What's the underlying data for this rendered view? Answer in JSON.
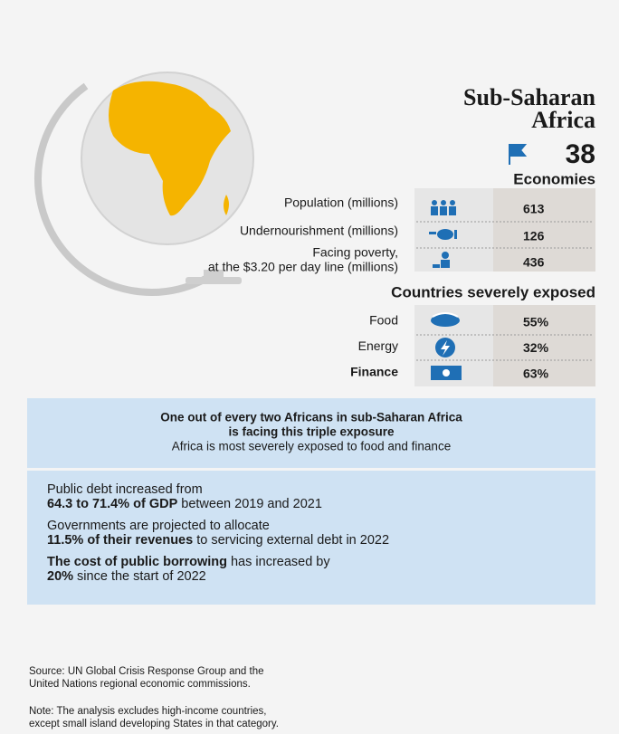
{
  "header": {
    "title_lines": [
      "Sub-Saharan",
      "Africa"
    ],
    "count": "38",
    "count_label": "Economies"
  },
  "stats": [
    {
      "label_lines": [
        "Population (millions)"
      ],
      "value": 613
    },
    {
      "label_lines": [
        "Undernourishment (millions)"
      ],
      "value": 126
    },
    {
      "label_lines": [
        "Facing poverty,",
        "at the $3.20 per day line (millions)"
      ],
      "value": 436
    }
  ],
  "exposure": {
    "heading": "Countries severely exposed",
    "rows": [
      {
        "label": "Food",
        "value": "55%"
      },
      {
        "label": "Energy",
        "value": "32%"
      },
      {
        "label": "Finance",
        "value": "63%"
      }
    ]
  },
  "highlight": {
    "lines": [
      {
        "text": "One out of every two Africans in sub-Saharan Africa",
        "bold": true
      },
      {
        "text": "is facing this triple exposure",
        "bold": true
      },
      {
        "text": "Africa is most severely exposed to food and finance",
        "bold": false
      }
    ]
  },
  "facts": [
    {
      "lines": [
        [
          {
            "text": "Public debt increased from",
            "bold": false
          }
        ],
        [
          {
            "text": "64.3 to 71.4% of GDP",
            "bold": true
          },
          {
            "text": " between 2019 and 2021",
            "bold": false
          }
        ]
      ]
    },
    {
      "lines": [
        [
          {
            "text": "Governments are projected to allocate",
            "bold": false
          }
        ],
        [
          {
            "text": "11.5% of their revenues",
            "bold": true
          },
          {
            "text": " to servicing external debt in 2022",
            "bold": false
          }
        ]
      ]
    },
    {
      "lines": [
        [
          {
            "text": "The cost of public borrowing",
            "bold": true
          },
          {
            "text": " has increased by",
            "bold": false
          }
        ],
        [
          {
            "text": "20%",
            "bold": true
          },
          {
            "text": " since the start of 2022",
            "bold": false
          }
        ]
      ]
    }
  ],
  "footer": {
    "source_lines": [
      "Source: UN Global Crisis Response Group and the",
      "United Nations regional economic commissions."
    ],
    "note_lines": [
      "Note: The analysis excludes high-income countries,",
      "except small island developing States in that category."
    ]
  }
}
